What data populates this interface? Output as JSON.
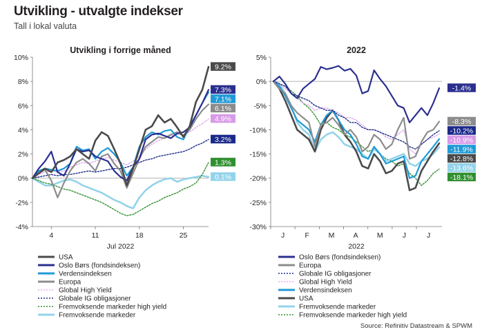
{
  "header": {
    "title": "Utvikling - utvalgte indekser",
    "subtitle": "Tall i lokal valuta"
  },
  "source": "Source: Refinitiv Datastream & SPWM",
  "colors": {
    "usa": "#4a4a4a",
    "oslo": "#2b2f8e",
    "verden": "#1f9ad6",
    "europa": "#8c8c8c",
    "ghy": "#d79be8",
    "gig": "#1c2a8a",
    "emhy": "#2f8f2f",
    "em": "#93d3ea"
  },
  "chart_data": [
    {
      "type": "line",
      "title": "Utvikling i forrige måned",
      "xlabel": "Jul 2022",
      "ylabel": "",
      "x": [
        1,
        2,
        3,
        4,
        5,
        6,
        7,
        8,
        9,
        10,
        11,
        12,
        13,
        14,
        15,
        16,
        17,
        18,
        19,
        20,
        21,
        22,
        23,
        24,
        25,
        26,
        27,
        28,
        29
      ],
      "x_tick_values": [
        4,
        11,
        18,
        25
      ],
      "x_tick_labels": [
        "4",
        "11",
        "18",
        "25"
      ],
      "ylim": [
        -4,
        10
      ],
      "y_ticks": [
        -4,
        -2,
        0,
        2,
        4,
        6,
        8,
        10
      ],
      "y_tick_labels": [
        "-4%",
        "-2%",
        "0%",
        "2%",
        "4%",
        "6%",
        "8%",
        "10%"
      ],
      "series": [
        {
          "name": "USA",
          "key": "usa",
          "dash": "",
          "width": 2.6,
          "end_label": "9.2%",
          "values": [
            0,
            0.4,
            0.8,
            0.5,
            1.3,
            1.5,
            1.8,
            2.4,
            2.0,
            1.6,
            3.1,
            3.8,
            3.5,
            2.4,
            1.2,
            -0.6,
            0.8,
            2.4,
            4.0,
            4.3,
            5.2,
            4.6,
            4.9,
            4.2,
            3.4,
            4.3,
            6.3,
            7.3,
            9.2
          ]
        },
        {
          "name": "Oslo Børs (fondsindeksen)",
          "key": "oslo",
          "dash": "",
          "width": 2.2,
          "end_label": "7.3%",
          "values": [
            0,
            0.8,
            1.4,
            2.2,
            0.5,
            0.2,
            1.2,
            2.4,
            2.2,
            2.3,
            1.8,
            1.6,
            1.4,
            0.6,
            0.1,
            -0.2,
            0.9,
            1.6,
            3.2,
            3.6,
            3.7,
            3.5,
            3.3,
            3.7,
            3.8,
            4.2,
            5.2,
            6.2,
            7.3
          ]
        },
        {
          "name": "Verdensindeksen",
          "key": "verden",
          "dash": "",
          "width": 2.2,
          "end_label": "7.1%",
          "values": [
            0,
            0.6,
            0.8,
            0.7,
            0.6,
            0.8,
            1.2,
            2.6,
            2.3,
            2.4,
            1.6,
            2.2,
            2.5,
            2.0,
            1.3,
            0.2,
            0.9,
            2.6,
            3.4,
            3.8,
            3.6,
            3.9,
            4.0,
            3.4,
            3.2,
            4.3,
            5.2,
            6.2,
            7.1
          ]
        },
        {
          "name": "Europa",
          "key": "europa",
          "dash": "",
          "width": 2.2,
          "end_label": "6.1%",
          "values": [
            0,
            0.4,
            0.7,
            -0.2,
            -1.6,
            -0.4,
            0.6,
            1.3,
            1.6,
            1.2,
            0.6,
            1.8,
            2.0,
            1.2,
            0.6,
            -0.8,
            0.4,
            1.6,
            2.6,
            3.0,
            3.4,
            3.3,
            3.6,
            3.8,
            3.5,
            4.0,
            4.9,
            5.6,
            6.1
          ]
        },
        {
          "name": "Global High Yield",
          "key": "ghy",
          "dash": "2,2",
          "width": 1.2,
          "end_label": "4.9%",
          "values": [
            0,
            0.3,
            0.5,
            0.6,
            0.5,
            0.6,
            0.9,
            1.1,
            1.3,
            1.2,
            1.4,
            1.6,
            1.7,
            1.5,
            1.3,
            1.1,
            1.4,
            1.8,
            2.4,
            2.8,
            3.1,
            3.3,
            3.5,
            3.6,
            3.6,
            3.8,
            4.2,
            4.5,
            4.9
          ]
        },
        {
          "name": "Globale IG obligasjoner",
          "key": "gig",
          "dash": "2,2",
          "width": 1.4,
          "end_label": "3.2%",
          "values": [
            0,
            0.1,
            0.2,
            0.3,
            0.2,
            0.3,
            0.3,
            0.4,
            0.5,
            0.6,
            0.5,
            0.6,
            0.7,
            0.8,
            0.8,
            0.9,
            1.1,
            1.3,
            1.5,
            1.6,
            1.8,
            1.9,
            2.0,
            2.1,
            2.2,
            2.4,
            2.7,
            2.9,
            3.2
          ]
        },
        {
          "name": "Fremvoksende markeder high yield",
          "key": "emhy",
          "dash": "2,2",
          "width": 1.4,
          "end_label": "1.3%",
          "values": [
            0,
            -0.2,
            -0.4,
            -0.5,
            -0.7,
            -0.9,
            -1.0,
            -1.2,
            -1.4,
            -1.6,
            -1.8,
            -2.0,
            -2.3,
            -2.6,
            -2.9,
            -3.1,
            -3.0,
            -2.7,
            -2.4,
            -2.1,
            -1.9,
            -1.6,
            -1.4,
            -1.2,
            -0.9,
            -0.7,
            -0.4,
            0.3,
            1.3
          ]
        },
        {
          "name": "Fremvoksende markeder",
          "key": "em",
          "dash": "",
          "width": 2.6,
          "end_label": "0.1%",
          "values": [
            0,
            -0.3,
            -0.6,
            -0.6,
            -0.4,
            -0.2,
            -0.1,
            -0.3,
            -0.6,
            -0.8,
            -1.0,
            -1.2,
            -1.5,
            -1.8,
            -2.0,
            -2.3,
            -2.5,
            -1.6,
            -1.0,
            -0.6,
            -0.3,
            -0.1,
            0.0,
            -0.3,
            -0.1,
            0.0,
            0.1,
            0.2,
            0.1
          ]
        }
      ]
    },
    {
      "type": "line",
      "title": "2022",
      "xlabel": "2022",
      "ylabel": "",
      "x_tick_labels": [
        "J",
        "F",
        "M",
        "A",
        "M",
        "J",
        "J"
      ],
      "ylim": [
        -30,
        5
      ],
      "y_ticks": [
        -30,
        -25,
        -20,
        -15,
        -10,
        -5,
        0,
        5
      ],
      "y_tick_labels": [
        "-30%",
        "-25%",
        "-20%",
        "-15%",
        "-10%",
        "-5%",
        "0%",
        "5%"
      ],
      "series": [
        {
          "name": "Oslo Børs (fondsindeksen)",
          "key": "oslo",
          "dash": "",
          "width": 2.2,
          "end_label": "-1.4%",
          "values": [
            0,
            1.0,
            -0.5,
            -2.5,
            -3.5,
            -1.5,
            -0.5,
            0.5,
            3.0,
            2.5,
            2.8,
            3.2,
            2.2,
            2.6,
            1.2,
            -2.5,
            -2.0,
            2.3,
            0.5,
            -1.0,
            -3.0,
            -5.0,
            -5.5,
            -8.5,
            -7.0,
            -5.5,
            -7.0,
            -4.5,
            -1.4
          ]
        },
        {
          "name": "Europa",
          "key": "europa",
          "dash": "",
          "width": 2.2,
          "end_label": "-8.3%",
          "values": [
            0,
            -1.5,
            -2.5,
            -5.0,
            -6.5,
            -7.5,
            -8.5,
            -13.5,
            -9.0,
            -8.5,
            -7.5,
            -9.0,
            -11.0,
            -10.0,
            -11.5,
            -14.5,
            -13.5,
            -11.0,
            -12.0,
            -14.0,
            -13.0,
            -10.0,
            -7.5,
            -16.0,
            -15.5,
            -12.5,
            -10.5,
            -10.0,
            -8.3
          ]
        },
        {
          "name": "Globale IG obligasjoner",
          "key": "gig",
          "dash": "2,2",
          "width": 1.4,
          "end_label": "-10.2%",
          "values": [
            0,
            -0.5,
            -1.0,
            -2.5,
            -3.0,
            -3.5,
            -4.0,
            -5.0,
            -5.5,
            -6.0,
            -6.0,
            -7.0,
            -7.5,
            -8.5,
            -8.5,
            -9.5,
            -10.0,
            -10.0,
            -10.5,
            -11.0,
            -11.5,
            -12.0,
            -12.5,
            -13.5,
            -14.0,
            -13.0,
            -12.0,
            -11.0,
            -10.2
          ]
        },
        {
          "name": "Global High Yield",
          "key": "ghy",
          "dash": "2,2",
          "width": 1.2,
          "end_label": "-10.9%",
          "values": [
            0,
            -0.5,
            -1.5,
            -2.5,
            -3.5,
            -4.5,
            -5.0,
            -6.0,
            -5.5,
            -5.5,
            -6.0,
            -6.5,
            -7.5,
            -7.5,
            -8.0,
            -9.0,
            -10.0,
            -10.0,
            -10.5,
            -11.5,
            -12.0,
            -11.0,
            -10.0,
            -14.0,
            -15.0,
            -13.0,
            -12.0,
            -11.5,
            -10.9
          ]
        },
        {
          "name": "Verdensindeksen",
          "key": "verden",
          "dash": "",
          "width": 2.2,
          "end_label": "-11.9%",
          "values": [
            0,
            -1.0,
            -3.0,
            -5.5,
            -8.0,
            -9.0,
            -10.0,
            -12.5,
            -9.0,
            -7.0,
            -6.0,
            -8.0,
            -10.0,
            -11.0,
            -13.0,
            -15.5,
            -16.0,
            -13.5,
            -15.0,
            -17.0,
            -16.5,
            -16.0,
            -15.5,
            -20.0,
            -19.5,
            -16.5,
            -15.0,
            -13.5,
            -11.9
          ]
        },
        {
          "name": "USA",
          "key": "usa",
          "dash": "",
          "width": 2.6,
          "end_label": "-12.8%",
          "values": [
            0,
            -1.5,
            -4.0,
            -7.0,
            -10.0,
            -11.0,
            -12.0,
            -14.5,
            -10.0,
            -7.5,
            -6.0,
            -8.0,
            -11.0,
            -12.5,
            -14.5,
            -17.5,
            -18.0,
            -15.0,
            -16.5,
            -19.0,
            -18.5,
            -17.0,
            -16.5,
            -22.5,
            -22.0,
            -18.5,
            -16.5,
            -14.5,
            -12.8
          ]
        },
        {
          "name": "Fremvoksende markeder",
          "key": "em",
          "dash": "",
          "width": 2.6,
          "end_label": "-13.6%",
          "values": [
            0,
            -0.5,
            -2.5,
            -5.0,
            -8.5,
            -10.0,
            -11.0,
            -14.5,
            -12.0,
            -11.0,
            -10.5,
            -11.5,
            -13.0,
            -13.5,
            -14.0,
            -15.0,
            -16.0,
            -14.0,
            -15.0,
            -16.5,
            -16.0,
            -15.5,
            -15.0,
            -17.0,
            -17.5,
            -16.5,
            -16.0,
            -15.0,
            -13.6
          ]
        },
        {
          "name": "Fremvoksende markeder high yield",
          "key": "emhy",
          "dash": "2,2",
          "width": 1.4,
          "end_label": "-18.1%",
          "values": [
            0,
            -0.5,
            -1.0,
            -2.0,
            -3.0,
            -4.5,
            -5.5,
            -7.0,
            -9.0,
            -8.5,
            -9.5,
            -10.0,
            -11.0,
            -11.5,
            -12.5,
            -13.5,
            -14.5,
            -14.0,
            -15.0,
            -16.0,
            -16.5,
            -17.5,
            -17.0,
            -19.0,
            -20.0,
            -21.5,
            -20.5,
            -19.0,
            -18.1
          ]
        }
      ]
    }
  ],
  "legend_left": [
    {
      "label": "USA",
      "key": "usa",
      "dash": "",
      "width": 3
    },
    {
      "label": "Oslo Børs (fondsindeksen)",
      "key": "oslo",
      "dash": "",
      "width": 3
    },
    {
      "label": "Verdensindeksen",
      "key": "verden",
      "dash": "",
      "width": 3
    },
    {
      "label": "Europa",
      "key": "europa",
      "dash": "",
      "width": 3
    },
    {
      "label": "Global High Yield",
      "key": "ghy",
      "dash": "2,2",
      "width": 1.3
    },
    {
      "label": "Globale IG obligasjoner",
      "key": "gig",
      "dash": "2,2",
      "width": 1.5
    },
    {
      "label": "Fremvoksende markeder high yield",
      "key": "emhy",
      "dash": "2,2",
      "width": 1.5
    },
    {
      "label": "Fremvoksende markeder",
      "key": "em",
      "dash": "",
      "width": 3
    }
  ],
  "legend_right": [
    {
      "label": "Oslo Børs (fondsindeksen)",
      "key": "oslo",
      "dash": "",
      "width": 3
    },
    {
      "label": "Europa",
      "key": "europa",
      "dash": "",
      "width": 3
    },
    {
      "label": "Globale IG obligasjoner",
      "key": "gig",
      "dash": "2,2",
      "width": 1.5
    },
    {
      "label": "Global High Yield",
      "key": "ghy",
      "dash": "2,2",
      "width": 1.3
    },
    {
      "label": "Verdensindeksen",
      "key": "verden",
      "dash": "",
      "width": 3
    },
    {
      "label": "USA",
      "key": "usa",
      "dash": "",
      "width": 3
    },
    {
      "label": "Fremvoksende markeder",
      "key": "em",
      "dash": "",
      "width": 3
    },
    {
      "label": "Fremvoksende markeder high yield",
      "key": "emhy",
      "dash": "2,2",
      "width": 1.5
    }
  ]
}
